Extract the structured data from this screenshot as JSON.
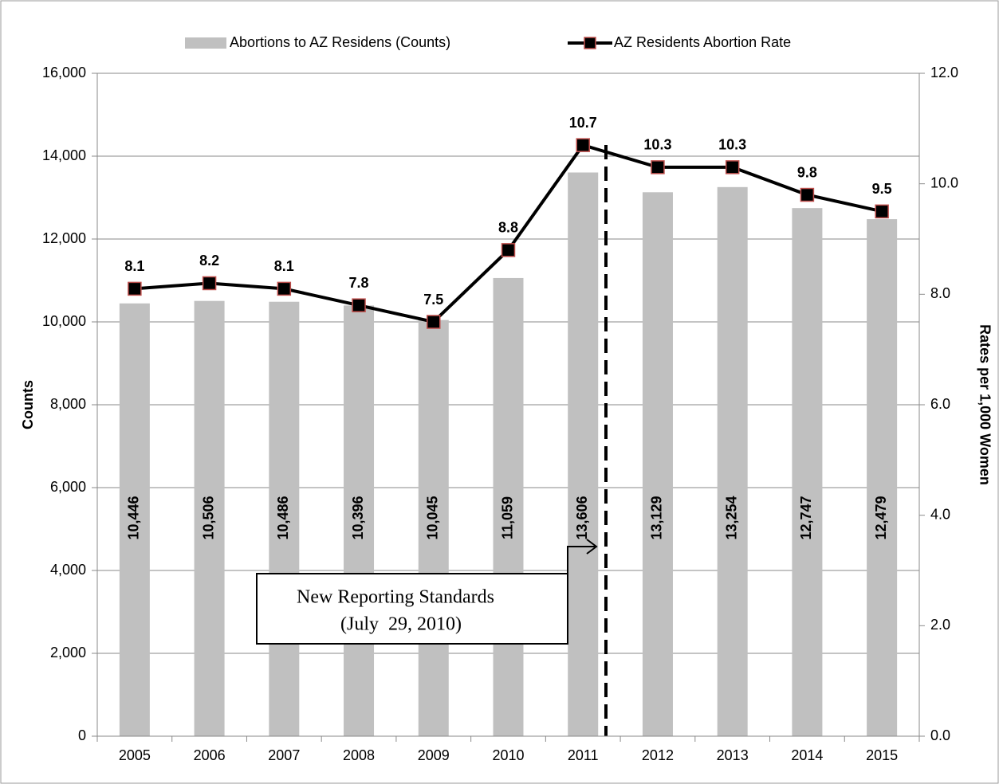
{
  "chart_data": {
    "type": "bar",
    "categories": [
      "2005",
      "2006",
      "2007",
      "2008",
      "2009",
      "2010",
      "2011",
      "2012",
      "2013",
      "2014",
      "2015"
    ],
    "series": [
      {
        "name": "Abortions to AZ Residens (Counts)",
        "type": "bar",
        "color": "#c0c0c0",
        "values": [
          10446,
          10506,
          10486,
          10396,
          10045,
          11059,
          13606,
          13129,
          13254,
          12747,
          12479
        ],
        "value_labels": [
          "10,446",
          "10,506",
          "10,486",
          "10,396",
          "10,045",
          "11,059",
          "13,606",
          "13,129",
          "13,254",
          "12,747",
          "12,479"
        ]
      },
      {
        "name": "AZ Residents Abortion Rate",
        "type": "line",
        "axis": "y2",
        "color": "#000000",
        "marker_edge": "#c0504d",
        "values": [
          8.1,
          8.2,
          8.1,
          7.8,
          7.5,
          8.8,
          10.7,
          10.3,
          10.3,
          9.8,
          9.5
        ]
      }
    ],
    "ylabel": "Counts",
    "y2label": "Rates per 1,000 Women",
    "ylim": [
      0,
      16000
    ],
    "yticks": [
      0,
      {
        "value": 2000,
        "label": "2,000"
      },
      {
        "value": 4000,
        "label": "4,000"
      },
      {
        "value": 6000,
        "label": "6,000"
      },
      {
        "value": 8000,
        "label": "8,000"
      },
      {
        "value": 10000,
        "label": "10,000"
      },
      {
        "value": 12000,
        "label": "12,000"
      },
      {
        "value": 14000,
        "label": "14,000"
      },
      {
        "value": 16000,
        "label": "16,000"
      }
    ],
    "y2lim": [
      0,
      12
    ],
    "y2ticks": [
      {
        "value": 0,
        "label": "0.0"
      },
      {
        "value": 2,
        "label": "2.0"
      },
      {
        "value": 4,
        "label": "4.0"
      },
      {
        "value": 6,
        "label": "6.0"
      },
      {
        "value": 8,
        "label": "8.0"
      },
      {
        "value": 10,
        "label": "10.0"
      },
      {
        "value": 12,
        "label": "12.0"
      }
    ],
    "grid": true,
    "legend": "top",
    "annotation": [
      "New Reporting Standards",
      "(July  29, 2010)"
    ]
  }
}
